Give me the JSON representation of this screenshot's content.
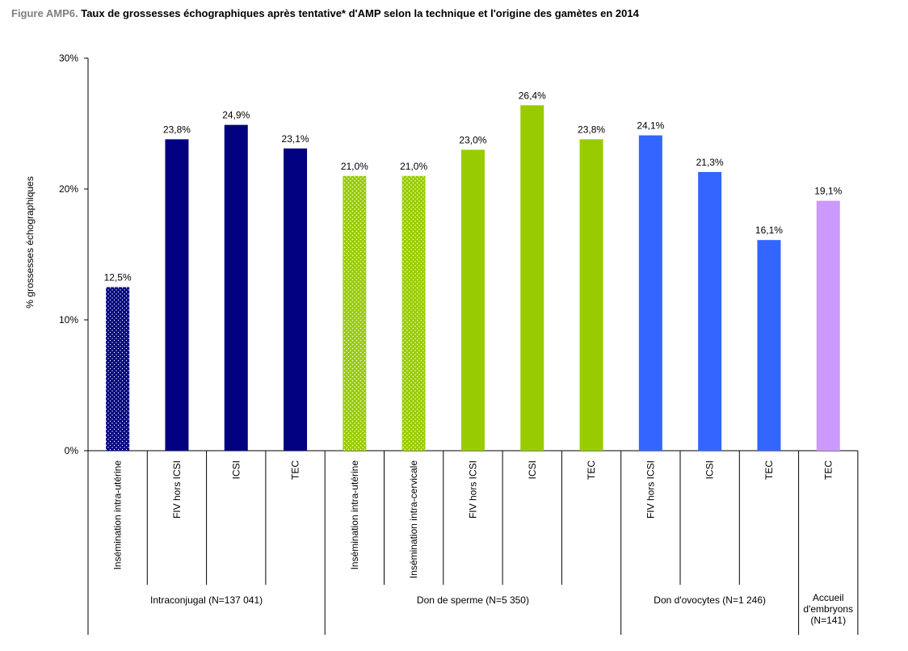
{
  "title": {
    "prefix": "Figure AMP6.",
    "text": "Taux de grossesses échographiques après tentative* d'AMP selon la technique et l'origine des gamètes en 2014"
  },
  "colors": {
    "navy": "#000080",
    "green": "#99cc00",
    "blue": "#3366ff",
    "purple": "#cc99ff"
  },
  "chart_data": {
    "type": "bar",
    "ylabel": "% grossesses échographiques",
    "ylim": [
      0,
      30
    ],
    "yticks": [
      "0%",
      "10%",
      "20%",
      "30%"
    ],
    "grid": false,
    "legend": "none",
    "categories": [
      "Insémination intra-utérine",
      "FIV hors ICSI",
      "ICSI",
      "TEC",
      "Insémination intra-utérine",
      "Insémination intra-cervicale",
      "FIV hors ICSI",
      "ICSI",
      "TEC",
      "FIV hors ICSI",
      "ICSI",
      "TEC",
      "TEC"
    ],
    "values": [
      12.5,
      23.8,
      24.9,
      23.1,
      21.0,
      21.0,
      23.0,
      26.4,
      23.8,
      24.1,
      21.3,
      16.1,
      19.1
    ],
    "data_labels": [
      "12,5%",
      "23,8%",
      "24,9%",
      "23,1%",
      "21,0%",
      "21,0%",
      "23,0%",
      "26,4%",
      "23,8%",
      "24,1%",
      "21,3%",
      "16,1%",
      "19,1%"
    ],
    "bar_colors": [
      "navy",
      "navy",
      "navy",
      "navy",
      "green",
      "green",
      "green",
      "green",
      "green",
      "blue",
      "blue",
      "blue",
      "purple"
    ],
    "bar_patterns": [
      "dotted",
      "solid",
      "solid",
      "solid",
      "dotted",
      "dotted",
      "solid",
      "solid",
      "solid",
      "solid",
      "solid",
      "solid",
      "solid"
    ],
    "groups": [
      {
        "label": "Intraconjugal (N=137 041)",
        "start": 0,
        "count": 4
      },
      {
        "label": "Don de sperme (N=5 350)",
        "start": 4,
        "count": 5
      },
      {
        "label": "Don d'ovocytes (N=1 246)",
        "start": 9,
        "count": 3
      },
      {
        "label": "Accueil\nd'embryons\n(N=141)",
        "start": 12,
        "count": 1
      }
    ]
  }
}
